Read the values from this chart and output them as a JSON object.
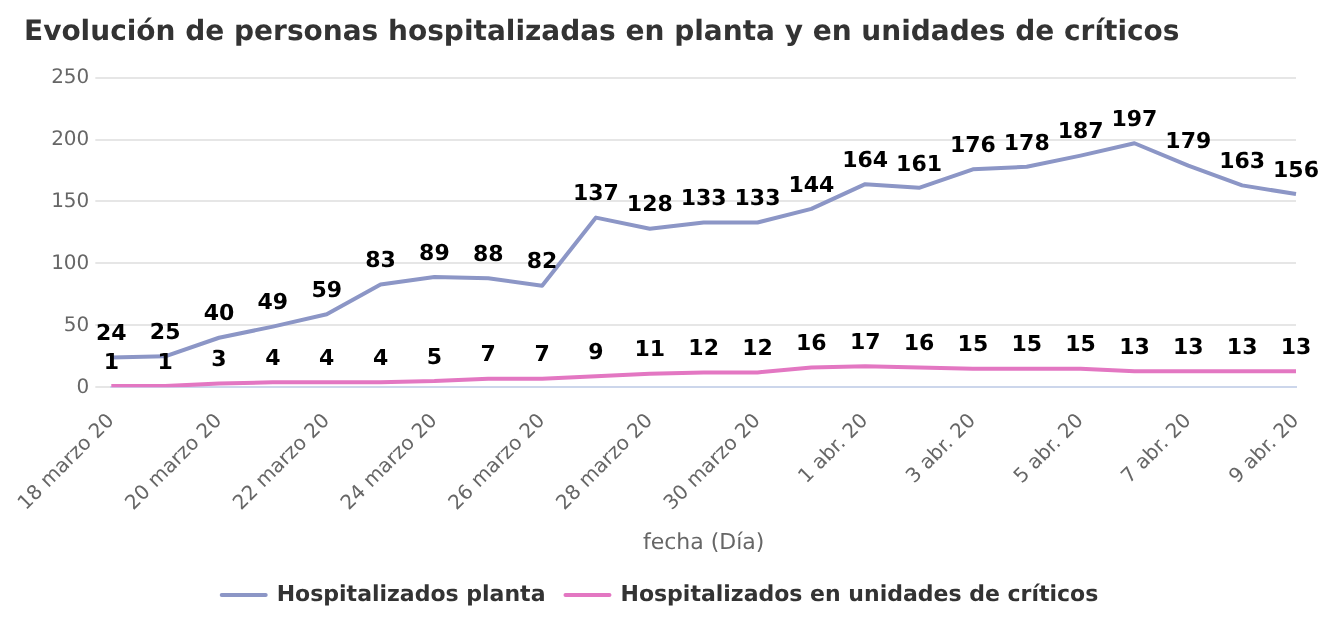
{
  "chart_data": {
    "type": "line",
    "title": "Evolución de personas hospitalizadas en planta y en unidades de críticos",
    "xlabel": "fecha (Día)",
    "categories": [
      "18 marzo 20",
      null,
      "20 marzo 20",
      null,
      "22 marzo 20",
      null,
      "24 marzo 20",
      null,
      "26 marzo 20",
      null,
      "28 marzo 20",
      null,
      "30 marzo 20",
      null,
      "1 abr. 20",
      null,
      "3 abr. 20",
      null,
      "5 abr. 20",
      null,
      "7 abr. 20",
      null,
      "9 abr. 20"
    ],
    "series": [
      {
        "name": "Hospitalizados planta",
        "color": "#8c96c6",
        "values": [
          24,
          25,
          40,
          49,
          59,
          83,
          89,
          88,
          82,
          137,
          128,
          133,
          133,
          144,
          164,
          161,
          176,
          178,
          187,
          197,
          179,
          163,
          156
        ]
      },
      {
        "name": "Hospitalizados en unidades de críticos",
        "color": "#e377c2",
        "values": [
          1,
          1,
          3,
          4,
          4,
          4,
          5,
          7,
          7,
          9,
          11,
          12,
          12,
          16,
          17,
          16,
          15,
          15,
          15,
          13,
          13,
          13,
          13
        ]
      }
    ],
    "ylim": [
      0,
      250
    ],
    "yticks": [
      0,
      50,
      100,
      150,
      200,
      250
    ],
    "grid": "y",
    "legend": "bottom",
    "marker": "none",
    "line_style": "solid",
    "data_labels": true
  }
}
